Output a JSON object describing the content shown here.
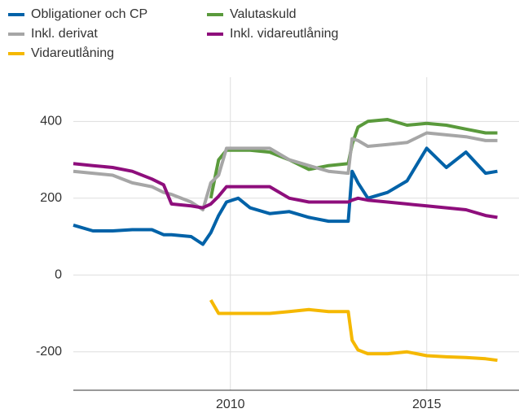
{
  "chart_data": {
    "type": "line",
    "x": [
      2006,
      2006.5,
      2007,
      2007.5,
      2008,
      2008.3,
      2008.5,
      2009,
      2009.3,
      2009.5,
      2009.7,
      2009.9,
      2010.2,
      2010.5,
      2011,
      2011.5,
      2012,
      2012.5,
      2013,
      2013.1,
      2013.25,
      2013.5,
      2014,
      2014.5,
      2015,
      2015.5,
      2016,
      2016.5,
      2016.8
    ],
    "series": [
      {
        "name": "Obligationer och CP",
        "color": "#0062a8",
        "values": [
          130,
          115,
          115,
          118,
          118,
          105,
          105,
          100,
          80,
          110,
          155,
          190,
          200,
          175,
          160,
          165,
          150,
          140,
          140,
          270,
          240,
          200,
          215,
          245,
          330,
          280,
          320,
          265,
          270
        ]
      },
      {
        "name": "Valutaskuld",
        "color": "#5a9a3c",
        "values": [
          null,
          null,
          null,
          null,
          null,
          null,
          null,
          null,
          null,
          200,
          300,
          325,
          325,
          325,
          320,
          300,
          275,
          285,
          290,
          340,
          385,
          400,
          405,
          390,
          395,
          390,
          380,
          370,
          370
        ]
      },
      {
        "name": "Inkl. derivat",
        "color": "#a6a6a6",
        "values": [
          270,
          265,
          260,
          240,
          230,
          215,
          210,
          190,
          170,
          240,
          260,
          330,
          330,
          330,
          330,
          300,
          285,
          270,
          265,
          355,
          350,
          335,
          340,
          345,
          370,
          365,
          360,
          350,
          350
        ]
      },
      {
        "name": "Inkl. vidareutlåning",
        "color": "#8e0e7c",
        "values": [
          290,
          285,
          280,
          270,
          250,
          235,
          185,
          180,
          175,
          185,
          205,
          230,
          230,
          230,
          230,
          200,
          190,
          190,
          190,
          195,
          200,
          195,
          190,
          185,
          180,
          175,
          170,
          155,
          150
        ]
      },
      {
        "name": "Vidareutlåning",
        "color": "#f5b800",
        "values": [
          null,
          null,
          null,
          null,
          null,
          null,
          null,
          null,
          null,
          -65,
          -100,
          -100,
          -100,
          -100,
          -100,
          -95,
          -90,
          -95,
          -95,
          -170,
          -195,
          -205,
          -205,
          -200,
          -210,
          -213,
          -215,
          -218,
          -222
        ]
      }
    ],
    "xlim": [
      2006,
      2017.35
    ],
    "xticks": [
      2010,
      2015
    ],
    "ylim": [
      -300,
      515
    ],
    "yticks": [
      400,
      200,
      0,
      -200
    ],
    "grid": true,
    "legend": "top-left"
  }
}
